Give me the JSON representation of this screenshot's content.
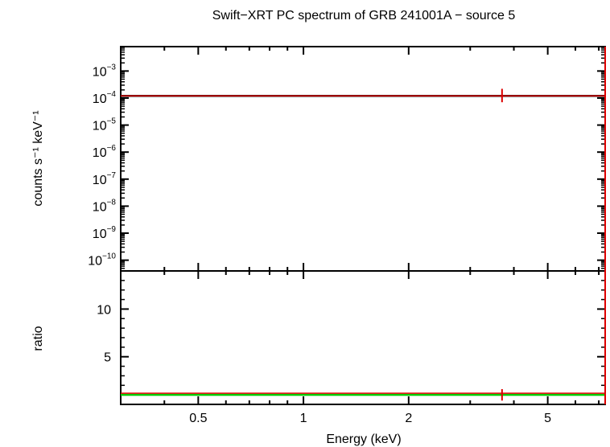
{
  "chart_data": {
    "type": "scatter",
    "title": "Swift−XRT PC spectrum of GRB 241001A − source 5",
    "xlabel": "Energy (keV)",
    "x_scale": "log",
    "xlim": [
      0.3,
      7.3
    ],
    "x_ticks": [
      0.5,
      1,
      2,
      5
    ],
    "x_tick_labels": [
      "0.5",
      "1",
      "2",
      "5"
    ],
    "panels": [
      {
        "name": "spectrum",
        "ylabel": "counts s⁻¹ keV⁻¹",
        "y_scale": "log",
        "ylim": [
          4e-11,
          0.008
        ],
        "y_ticks": [
          0.001,
          0.0001,
          1e-05,
          1e-06,
          1e-07,
          1e-08,
          1e-09,
          1e-10
        ],
        "y_tick_exponents": [
          "−3",
          "−4",
          "−5",
          "−6",
          "−7",
          "−8",
          "−9",
          "−10"
        ],
        "series": [
          {
            "color": "#000000",
            "kind": "model-line",
            "x": [
              0.3,
              7.3
            ],
            "y": [
              0.00012,
              0.00012
            ]
          },
          {
            "color": "#dd0000",
            "kind": "data-point",
            "x": [
              3.7
            ],
            "xerr": [
              [
                0.3,
                7.3
              ]
            ],
            "y": [
              0.00012
            ],
            "yerr": [
              [
                7e-05,
                0.00022
              ]
            ]
          }
        ]
      },
      {
        "name": "ratio",
        "ylabel": "ratio",
        "y_scale": "linear",
        "ylim": [
          0,
          14
        ],
        "y_ticks": [
          5,
          10
        ],
        "y_tick_labels": [
          "5",
          "10"
        ],
        "series": [
          {
            "color": "#00cc00",
            "kind": "reference-line",
            "x": [
              0.3,
              7.3
            ],
            "y": [
              1,
              1
            ]
          },
          {
            "color": "#dd0000",
            "kind": "data-point",
            "x": [
              3.7
            ],
            "xerr": [
              [
                0.3,
                7.3
              ]
            ],
            "y": [
              1
            ],
            "yerr": [
              [
                0.4,
                1.6
              ]
            ]
          }
        ]
      }
    ],
    "grid": false,
    "legend": "none"
  }
}
